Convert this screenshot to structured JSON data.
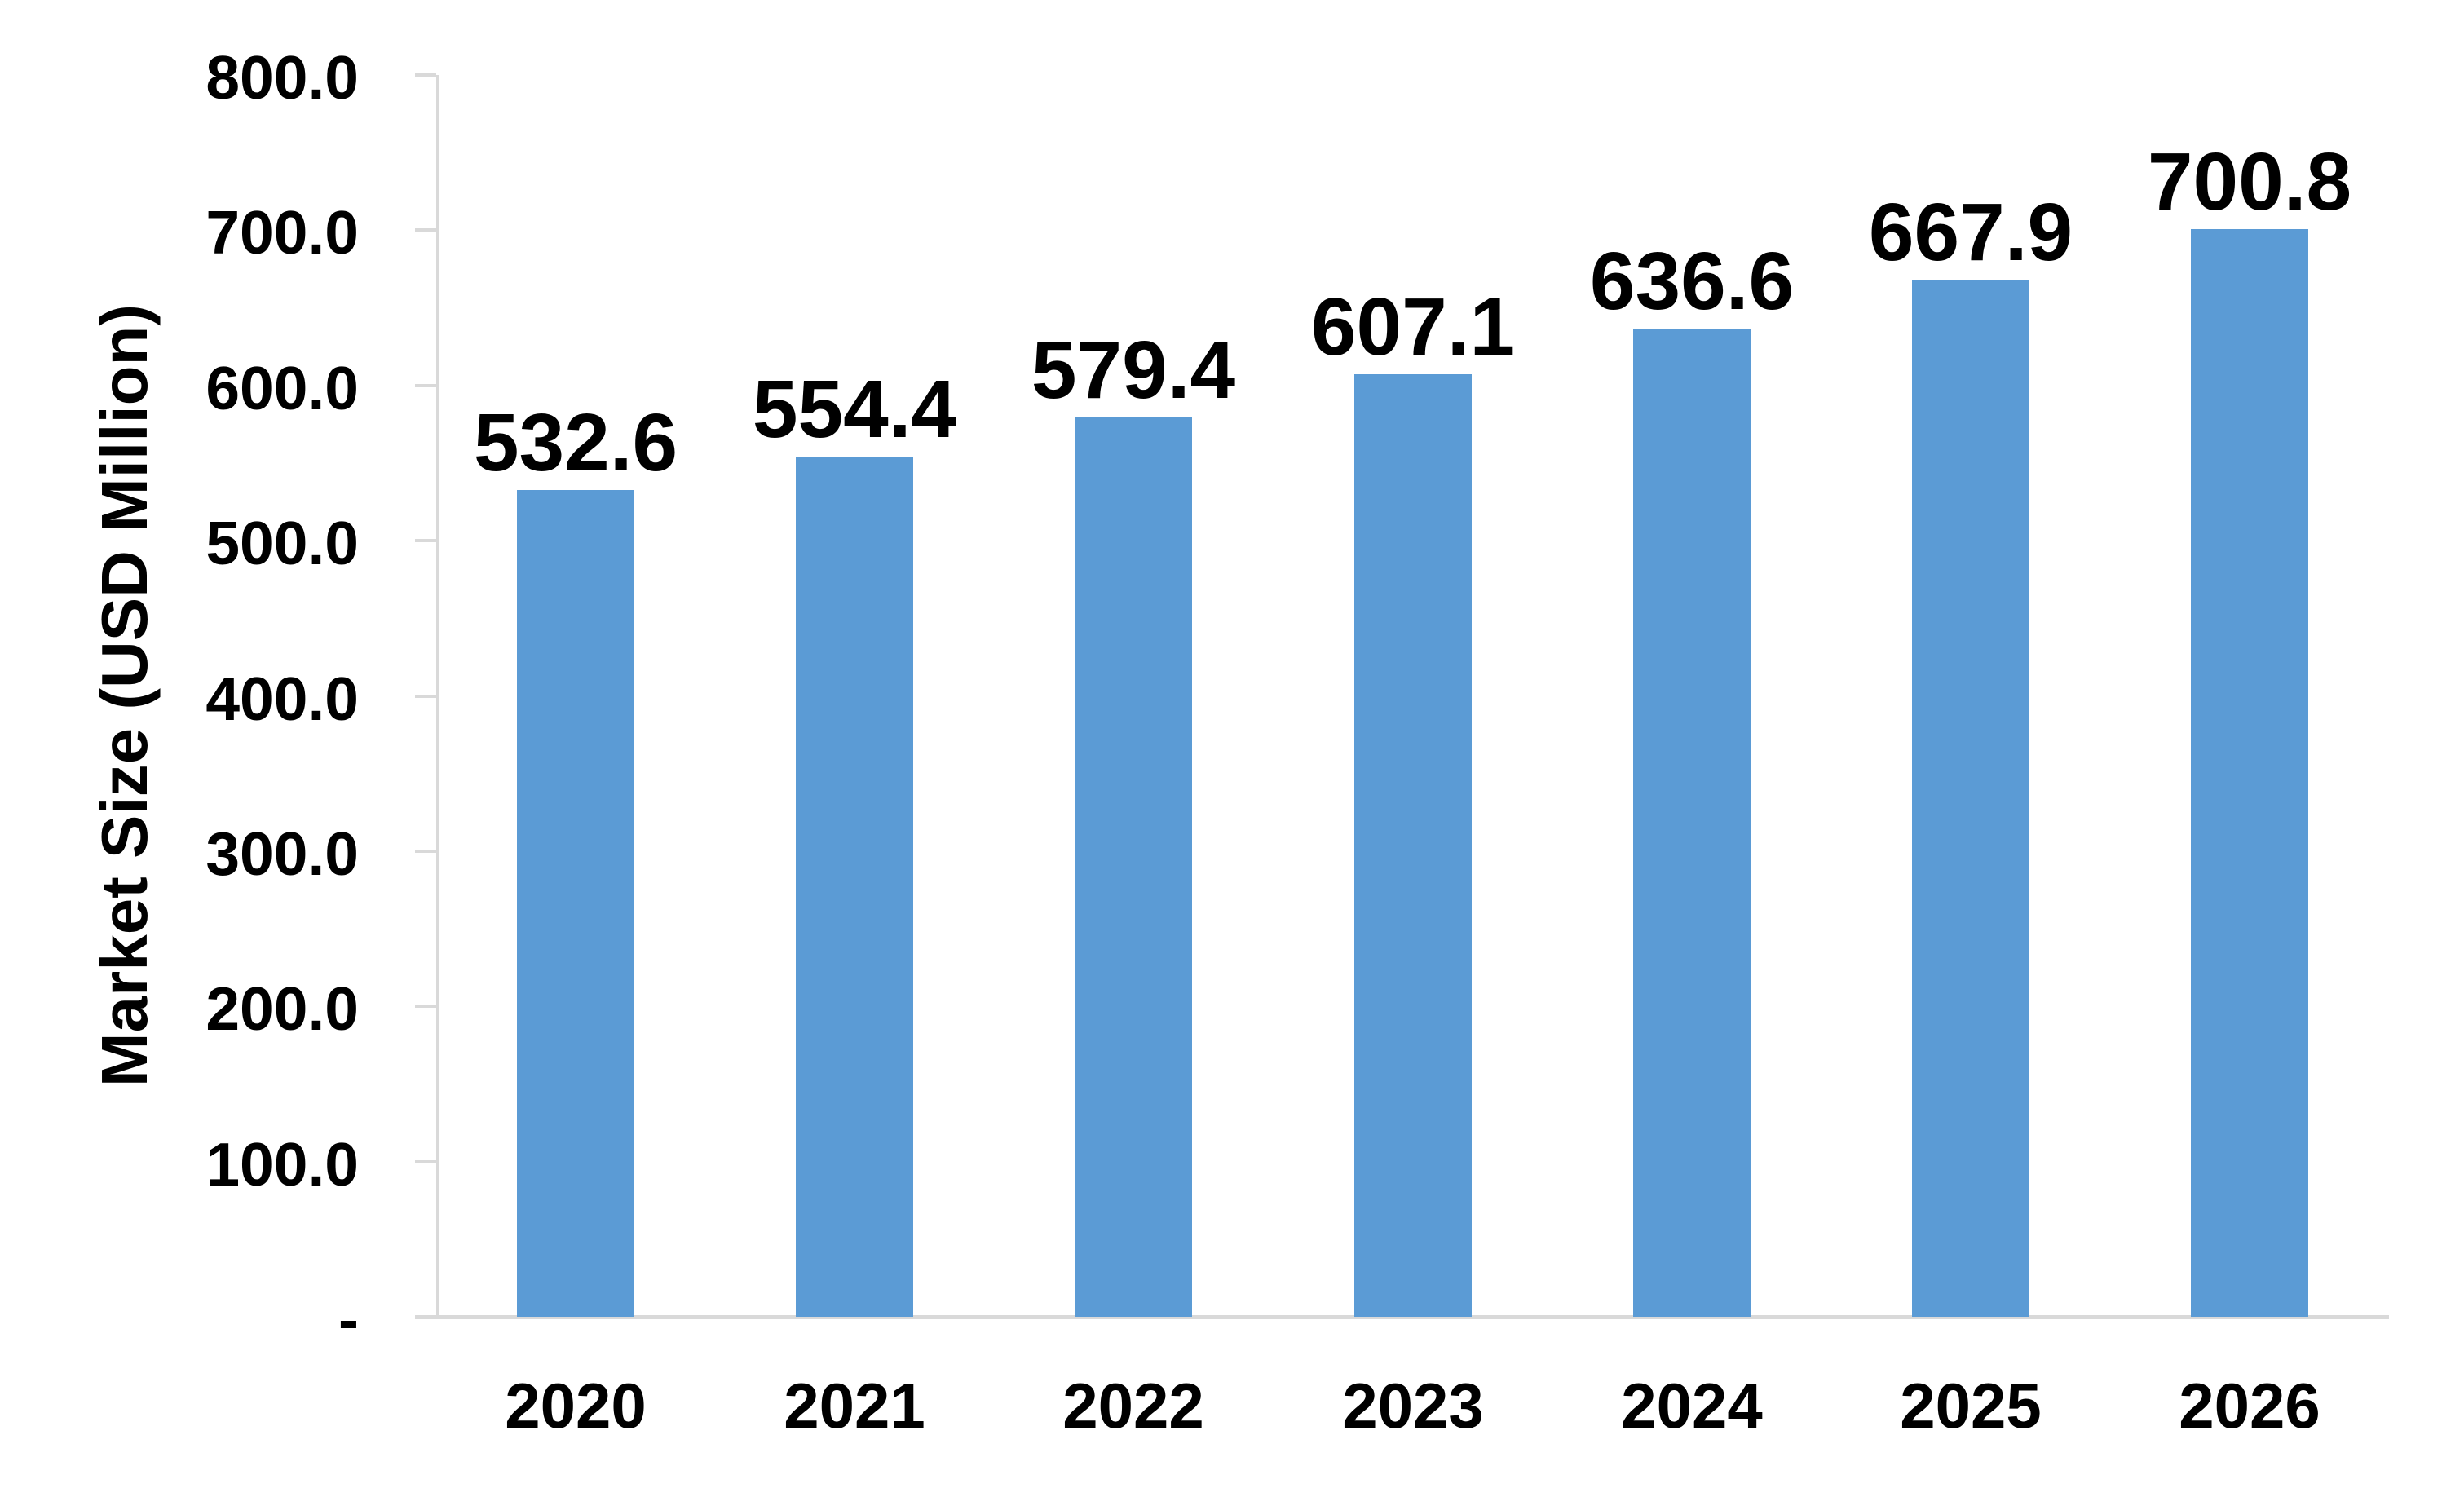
{
  "chart_data": {
    "type": "bar",
    "categories": [
      "2020",
      "2021",
      "2022",
      "2023",
      "2024",
      "2025",
      "2026"
    ],
    "values": [
      532.6,
      554.4,
      579.4,
      607.1,
      636.6,
      667.9,
      700.8
    ],
    "value_labels": [
      "532.6",
      "554.4",
      "579.4",
      "607.1",
      "636.6",
      "667.9",
      "700.8"
    ],
    "title": "",
    "xlabel": "",
    "ylabel": "Market Size (USD Million)",
    "ylim": [
      0,
      800
    ],
    "ytick_interval": 100,
    "ytick_labels": [
      "-",
      "100.0",
      "200.0",
      "300.0",
      "400.0",
      "500.0",
      "600.0",
      "700.0",
      "800.0"
    ],
    "grid": false,
    "legend": false,
    "data_labels_shown": true,
    "bar_color": "#5B9BD5",
    "axis_color": "#D9D9D9",
    "text_color": "#000000",
    "background_color": "#FFFFFF"
  }
}
